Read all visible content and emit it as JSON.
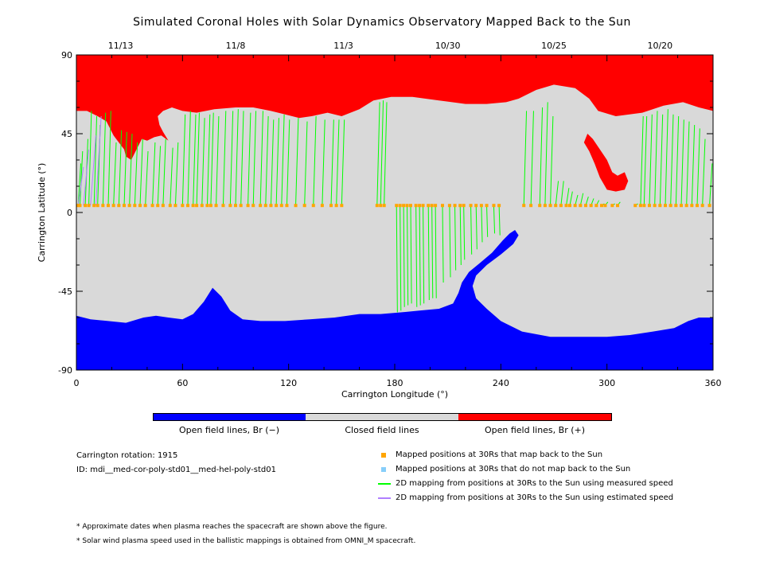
{
  "title": "Simulated Coronal Holes with Solar Dynamics Observatory Mapped Back to the Sun",
  "chart_data": {
    "type": "scatter",
    "title": "Simulated Coronal Holes with Solar Dynamics Observatory Mapped Back to the Sun",
    "xlabel": "Carrington Longitude (°)",
    "ylabel": "Carrington Latitude (°)",
    "xlim": [
      0,
      360
    ],
    "ylim": [
      -90,
      90
    ],
    "xticks": [
      "0",
      "60",
      "120",
      "180",
      "240",
      "300",
      "360"
    ],
    "yticks": [
      "90",
      "45",
      "0",
      "-45",
      "-90"
    ],
    "top_axis_dates": [
      {
        "lon": 25,
        "label": "11/13"
      },
      {
        "lon": 90,
        "label": "11/8"
      },
      {
        "lon": 151,
        "label": "11/3"
      },
      {
        "lon": 210,
        "label": "10/30"
      },
      {
        "lon": 270,
        "label": "10/25"
      },
      {
        "lon": 330,
        "label": "10/20"
      }
    ],
    "regions": {
      "positive_open": {
        "name": "Open field lines, Br (+)",
        "color": "#ff0000"
      },
      "closed": {
        "name": "Closed field lines",
        "color": "#d9d9d9"
      },
      "negative_open": {
        "name": "Open field lines, Br (−)",
        "color": "#0000ff"
      }
    },
    "mapped_lat": 4,
    "mappings": [
      [
        1,
        28
      ],
      [
        2,
        35
      ],
      [
        5,
        42
      ],
      [
        7,
        58
      ],
      [
        10,
        55
      ],
      [
        12,
        50
      ],
      [
        15,
        57
      ],
      [
        18,
        58
      ],
      [
        21,
        40
      ],
      [
        24,
        47
      ],
      [
        27,
        46
      ],
      [
        30,
        45
      ],
      [
        33,
        40
      ],
      [
        36,
        42
      ],
      [
        39,
        35
      ],
      [
        43,
        40
      ],
      [
        46,
        38
      ],
      [
        49,
        42
      ],
      [
        53,
        37
      ],
      [
        56,
        40
      ],
      [
        60,
        56
      ],
      [
        63,
        58
      ],
      [
        66,
        56
      ],
      [
        68,
        57
      ],
      [
        71,
        54
      ],
      [
        74,
        56
      ],
      [
        76,
        57
      ],
      [
        79,
        55
      ],
      [
        83,
        58
      ],
      [
        87,
        58
      ],
      [
        90,
        59
      ],
      [
        93,
        58
      ],
      [
        97,
        57
      ],
      [
        100,
        58
      ],
      [
        104,
        58
      ],
      [
        107,
        55
      ],
      [
        110,
        53
      ],
      [
        113,
        54
      ],
      [
        116,
        56
      ],
      [
        119,
        53
      ],
      [
        124,
        54
      ],
      [
        129,
        52
      ],
      [
        134,
        55
      ],
      [
        139,
        53
      ],
      [
        144,
        53
      ],
      [
        147,
        53
      ],
      [
        150,
        53
      ],
      [
        170,
        63
      ],
      [
        172,
        64
      ],
      [
        174,
        63
      ],
      [
        181,
        -57
      ],
      [
        183,
        -56
      ],
      [
        185,
        -54
      ],
      [
        187,
        -53
      ],
      [
        189,
        -52
      ],
      [
        192,
        -54
      ],
      [
        194,
        -53
      ],
      [
        196,
        -52
      ],
      [
        199,
        -50
      ],
      [
        201,
        -49
      ],
      [
        203,
        -49
      ],
      [
        207,
        -40
      ],
      [
        211,
        -37
      ],
      [
        214,
        -33
      ],
      [
        217,
        -30
      ],
      [
        219,
        -27
      ],
      [
        223,
        -24
      ],
      [
        226,
        -21
      ],
      [
        229,
        -17
      ],
      [
        232,
        -14
      ],
      [
        236,
        -12
      ],
      [
        239,
        -13
      ],
      [
        253,
        58
      ],
      [
        257,
        58
      ],
      [
        262,
        60
      ],
      [
        265,
        63
      ],
      [
        268,
        55
      ],
      [
        271,
        18
      ],
      [
        274,
        18
      ],
      [
        277,
        14
      ],
      [
        279,
        12
      ],
      [
        282,
        10
      ],
      [
        285,
        11
      ],
      [
        288,
        9
      ],
      [
        291,
        8
      ],
      [
        294,
        7
      ],
      [
        297,
        5
      ],
      [
        299,
        6
      ],
      [
        303,
        5
      ],
      [
        306,
        6
      ],
      [
        316,
        5
      ],
      [
        319,
        55
      ],
      [
        321,
        55
      ],
      [
        324,
        56
      ],
      [
        327,
        58
      ],
      [
        330,
        56
      ],
      [
        333,
        59
      ],
      [
        336,
        56
      ],
      [
        339,
        55
      ],
      [
        342,
        53
      ],
      [
        345,
        52
      ],
      [
        348,
        50
      ],
      [
        351,
        48
      ],
      [
        354,
        42
      ],
      [
        358,
        28
      ]
    ],
    "estimated_mappings": [
      [
        1,
        26
      ],
      [
        4,
        36
      ],
      [
        8,
        44
      ],
      [
        11,
        55
      ]
    ],
    "unmapped_points": []
  },
  "colorbar_labels": {
    "negative": "Open field lines, Br (−)",
    "closed": "Closed field lines",
    "positive": "Open field lines, Br (+)"
  },
  "info": {
    "rotation": "Carrington rotation: 1915",
    "id": "ID: mdi__med-cor-poly-std01__med-hel-poly-std01"
  },
  "legend": [
    {
      "label": "Mapped positions at 30Rs that map back to the Sun",
      "color": "#ffa500",
      "symbol": "square"
    },
    {
      "label": "Mapped positions at 30Rs that do not map back to the Sun",
      "color": "#87cefa",
      "symbol": "square"
    },
    {
      "label": "2D mapping from positions at 30Rs to the Sun using measured speed",
      "color": "#00ff00",
      "symbol": "line"
    },
    {
      "label": "2D mapping from positions at 30Rs to the Sun using estimated speed",
      "color": "#b07fff",
      "symbol": "line"
    }
  ],
  "footnotes": [
    "* Approximate dates when plasma reaches the spacecraft are shown above the figure.",
    "* Solar wind plasma speed used in the ballistic mappings is obtained from OMNI_M spacecraft."
  ]
}
